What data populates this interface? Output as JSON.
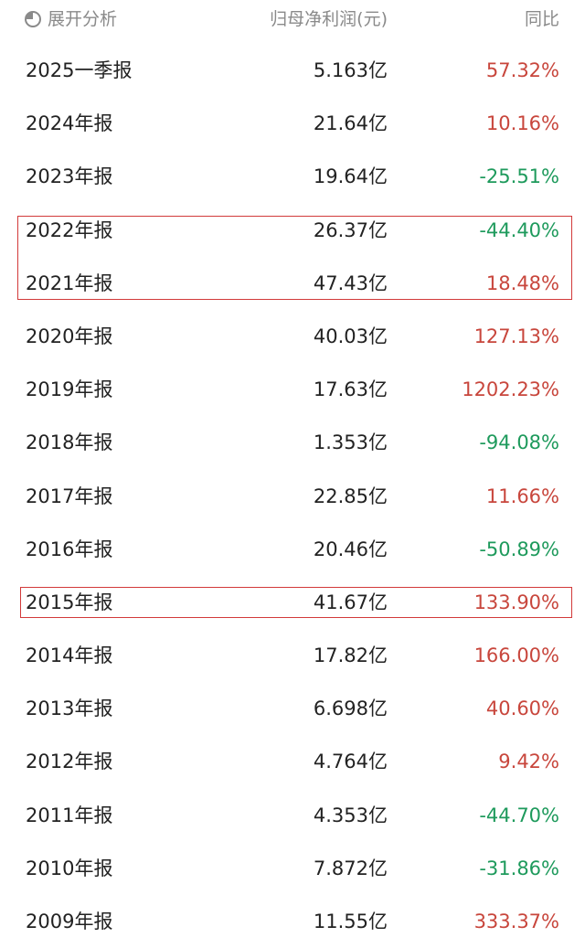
{
  "header": {
    "expand_label": "展开分析",
    "expand_icon": "pie-chart-icon",
    "col_profit": "归母净利润(元)",
    "col_yoy": "同比"
  },
  "colors": {
    "up": "#c8463c",
    "down": "#1e9a5c",
    "highlight_border": "#d23a3a"
  },
  "rows": [
    {
      "period": "2025一季报",
      "profit": "5.163亿",
      "yoy": "57.32%",
      "trend": "up"
    },
    {
      "period": "2024年报",
      "profit": "21.64亿",
      "yoy": "10.16%",
      "trend": "up"
    },
    {
      "period": "2023年报",
      "profit": "19.64亿",
      "yoy": "-25.51%",
      "trend": "down"
    },
    {
      "period": "2022年报",
      "profit": "26.37亿",
      "yoy": "-44.40%",
      "trend": "down"
    },
    {
      "period": "2021年报",
      "profit": "47.43亿",
      "yoy": "18.48%",
      "trend": "up"
    },
    {
      "period": "2020年报",
      "profit": "40.03亿",
      "yoy": "127.13%",
      "trend": "up"
    },
    {
      "period": "2019年报",
      "profit": "17.63亿",
      "yoy": "1202.23%",
      "trend": "up"
    },
    {
      "period": "2018年报",
      "profit": "1.353亿",
      "yoy": "-94.08%",
      "trend": "down"
    },
    {
      "period": "2017年报",
      "profit": "22.85亿",
      "yoy": "11.66%",
      "trend": "up"
    },
    {
      "period": "2016年报",
      "profit": "20.46亿",
      "yoy": "-50.89%",
      "trend": "down"
    },
    {
      "period": "2015年报",
      "profit": "41.67亿",
      "yoy": "133.90%",
      "trend": "up"
    },
    {
      "period": "2014年报",
      "profit": "17.82亿",
      "yoy": "166.00%",
      "trend": "up"
    },
    {
      "period": "2013年报",
      "profit": "6.698亿",
      "yoy": "40.60%",
      "trend": "up"
    },
    {
      "period": "2012年报",
      "profit": "4.764亿",
      "yoy": "9.42%",
      "trend": "up"
    },
    {
      "period": "2011年报",
      "profit": "4.353亿",
      "yoy": "-44.70%",
      "trend": "down"
    },
    {
      "period": "2010年报",
      "profit": "7.872亿",
      "yoy": "-31.86%",
      "trend": "down"
    },
    {
      "period": "2009年报",
      "profit": "11.55亿",
      "yoy": "333.37%",
      "trend": "up"
    }
  ]
}
